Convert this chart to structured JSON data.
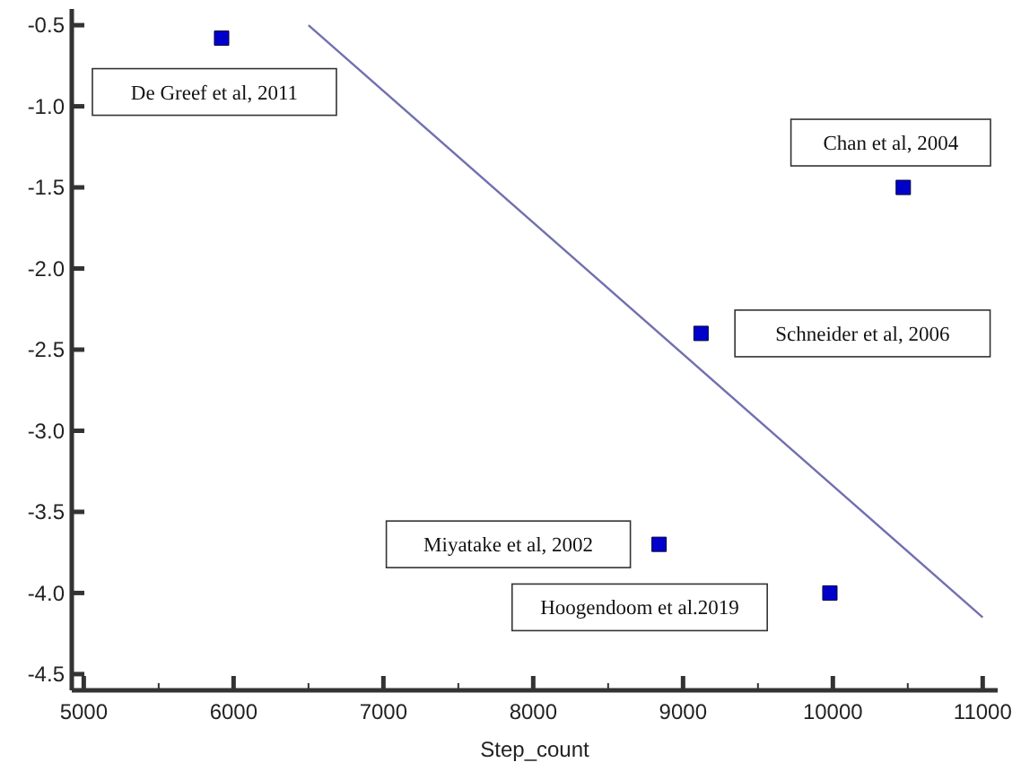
{
  "chart_data": {
    "type": "scatter",
    "xlabel": "Step_count",
    "grid": false,
    "xlim": [
      4920,
      11100
    ],
    "ylim": [
      -4.6,
      -0.4
    ],
    "xticks": [
      5000,
      {
        "value": 5500,
        "label": null
      },
      6000,
      {
        "value": 6500,
        "label": null
      },
      7000,
      {
        "value": 7500,
        "label": null
      },
      8000,
      {
        "value": 8500,
        "label": null
      },
      9000,
      {
        "value": 9500,
        "label": null
      },
      10000,
      {
        "value": 10500,
        "label": null
      },
      11000
    ],
    "yticks": [
      -0.5,
      {
        "value": -1,
        "label": "-1.0"
      },
      -1.5,
      {
        "value": -2,
        "label": "-2.0"
      },
      -2.5,
      {
        "value": -3,
        "label": "-3.0"
      },
      -3.5,
      {
        "value": -4,
        "label": "-4.0"
      },
      -4.5
    ],
    "series": [
      {
        "marker": "square",
        "color": "#0000cc",
        "x": [
          5920,
          10470,
          9120,
          8840,
          9980
        ],
        "values": [
          -0.58,
          -1.5,
          -2.4,
          -3.7,
          -4.0
        ]
      },
      {
        "type": "line",
        "color": "#7070b0",
        "x": [
          6500,
          11000
        ],
        "values": [
          -0.5,
          -4.15
        ]
      }
    ],
    "annotations": [
      "De Greef et al, 2011",
      "Chan et al, 2004",
      "Schneider et al, 2006",
      "Miyatake et al, 2002",
      "Hoogendoom et al.2019"
    ]
  }
}
